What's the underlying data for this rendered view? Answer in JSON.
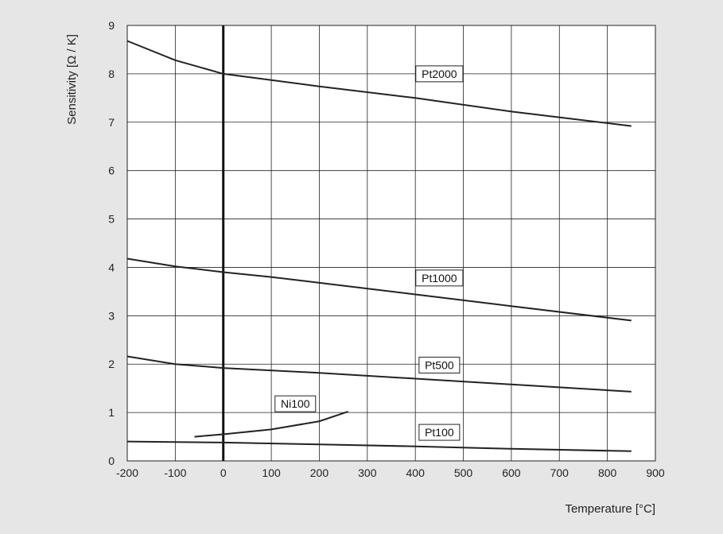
{
  "chart_data": {
    "type": "line",
    "title": "",
    "xlabel": "Temperature [°C]",
    "ylabel": "Sensitivity [Ω / K]",
    "xlim": [
      -200,
      900
    ],
    "ylim": [
      0,
      9
    ],
    "grid": true,
    "x_ticks": [
      -200,
      -100,
      0,
      100,
      200,
      300,
      400,
      500,
      600,
      700,
      800,
      900
    ],
    "y_ticks": [
      0,
      1,
      2,
      3,
      4,
      5,
      6,
      7,
      8,
      9
    ],
    "x_tick_labels": [
      "-200",
      "-100",
      "0",
      "100",
      "200",
      "300",
      "400",
      "500",
      "600",
      "700",
      "800",
      "900"
    ],
    "y_tick_labels": [
      "0",
      "1",
      "2",
      "3",
      "4",
      "5",
      "6",
      "7",
      "8",
      "9"
    ],
    "reference_line_x": 0,
    "colors": {
      "background": "#e6e6e6",
      "plot_area": "#ffffff",
      "line": "#222222",
      "grid": "#222222"
    },
    "series": [
      {
        "name": "Pt2000",
        "x": [
          -200,
          -100,
          0,
          200,
          400,
          600,
          850
        ],
        "y": [
          8.68,
          8.28,
          8.0,
          7.74,
          7.5,
          7.22,
          6.92
        ],
        "label_at": [
          450,
          8.0
        ]
      },
      {
        "name": "Pt1000",
        "x": [
          -200,
          -100,
          0,
          100,
          200,
          400,
          600,
          850
        ],
        "y": [
          4.18,
          4.02,
          3.9,
          3.8,
          3.68,
          3.44,
          3.2,
          2.9
        ],
        "label_at": [
          450,
          3.78
        ]
      },
      {
        "name": "Pt500",
        "x": [
          -200,
          -100,
          0,
          200,
          400,
          600,
          850
        ],
        "y": [
          2.16,
          2.0,
          1.92,
          1.82,
          1.7,
          1.58,
          1.43
        ],
        "label_at": [
          450,
          1.98
        ]
      },
      {
        "name": "Ni100",
        "x": [
          -60,
          0,
          100,
          200,
          260
        ],
        "y": [
          0.5,
          0.55,
          0.65,
          0.82,
          1.02
        ],
        "label_at": [
          150,
          1.18
        ]
      },
      {
        "name": "Pt100",
        "x": [
          -200,
          0,
          200,
          400,
          600,
          850
        ],
        "y": [
          0.4,
          0.38,
          0.34,
          0.3,
          0.25,
          0.2
        ],
        "label_at": [
          450,
          0.59
        ]
      }
    ]
  }
}
